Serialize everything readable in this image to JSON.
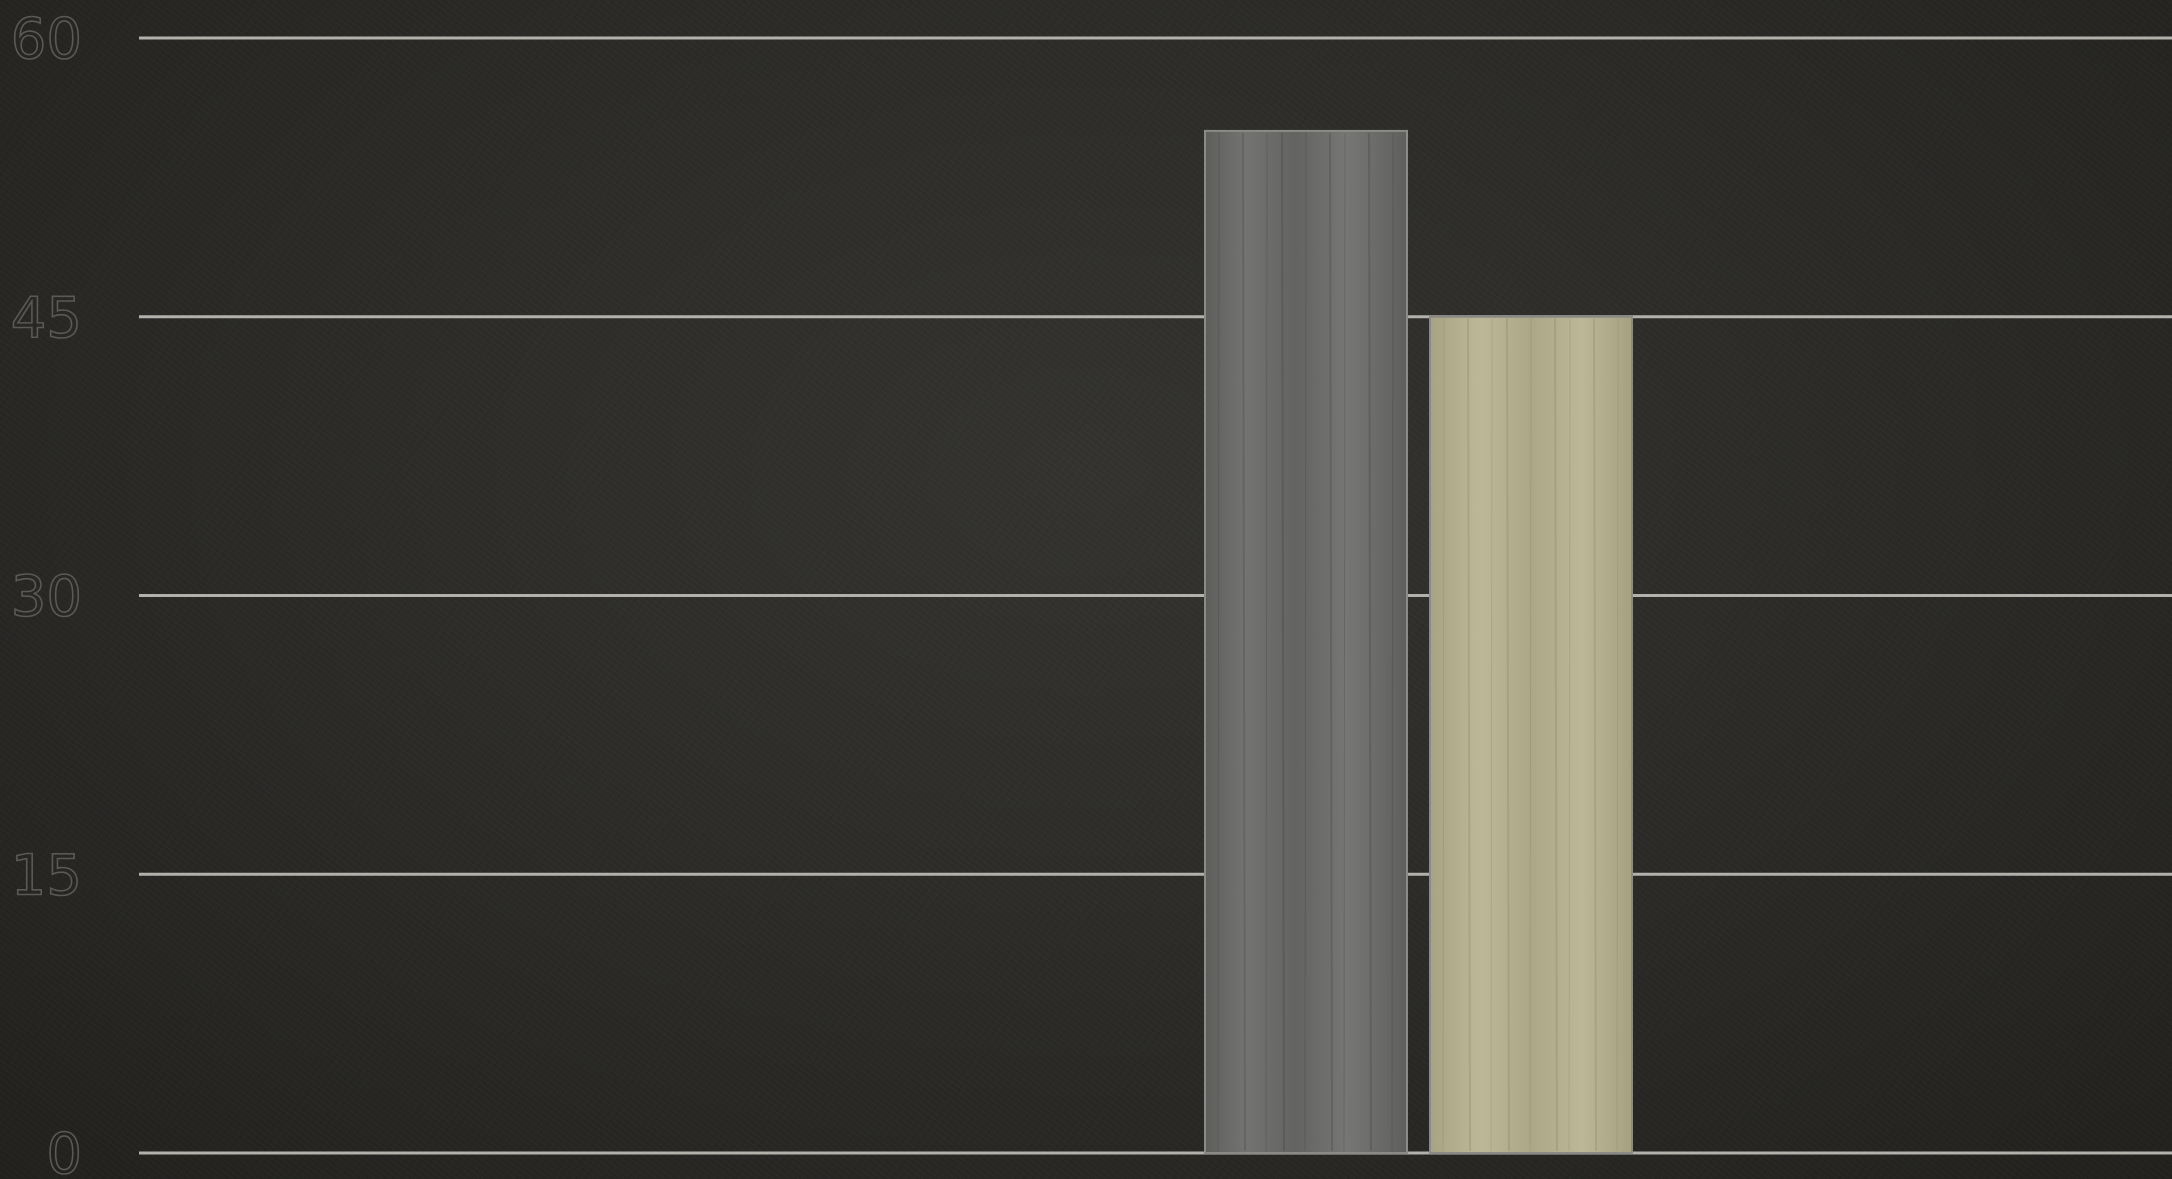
{
  "chart_data": {
    "type": "bar",
    "categories": [
      "",
      ""
    ],
    "values": [
      55,
      45
    ],
    "ylim": [
      0,
      60
    ],
    "yticks": [
      0,
      15,
      30,
      45,
      60
    ],
    "grid": true,
    "colors": {
      "series_1": "#6c6c6a",
      "series_2": "#b6b18f",
      "grid": "#b3b1ab",
      "tick_label": "#5a5955",
      "background": "#2b2a27"
    },
    "title": "",
    "xlabel": "",
    "ylabel": ""
  }
}
